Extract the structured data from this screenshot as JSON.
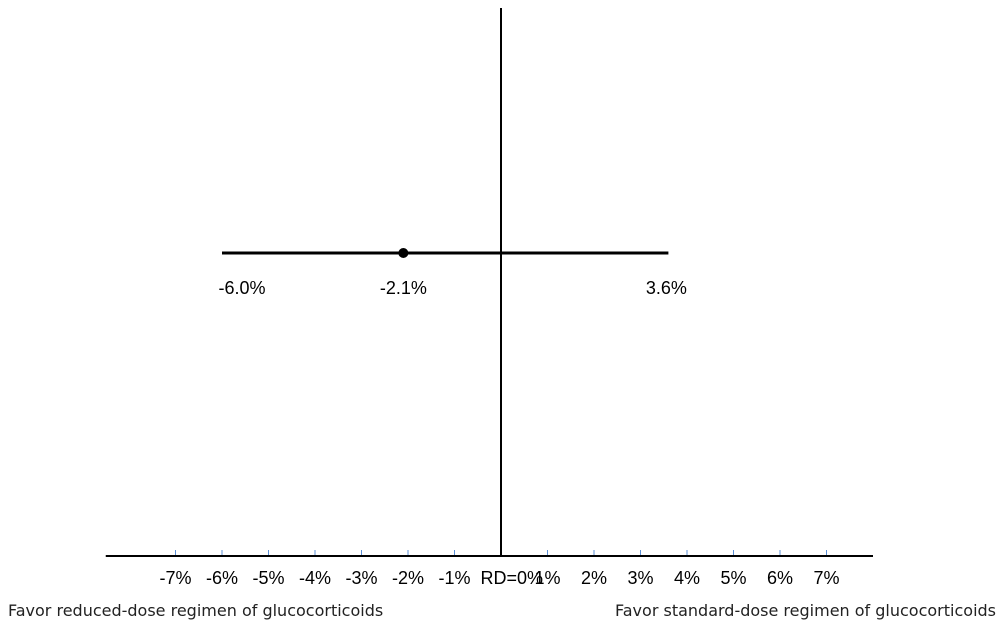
{
  "chart_data": {
    "type": "forest",
    "title": "",
    "xlabel": "",
    "ylabel": "",
    "x_ticks": [
      {
        "value": -7,
        "label": "-7%"
      },
      {
        "value": -6,
        "label": "-6%"
      },
      {
        "value": -5,
        "label": "-5%"
      },
      {
        "value": -4,
        "label": "-4%"
      },
      {
        "value": -3,
        "label": "-3%"
      },
      {
        "value": -2,
        "label": "-2%"
      },
      {
        "value": -1,
        "label": "-1%"
      },
      {
        "value": 0,
        "label": "RD=0%"
      },
      {
        "value": 1,
        "label": "1%"
      },
      {
        "value": 2,
        "label": "2%"
      },
      {
        "value": 3,
        "label": "3%"
      },
      {
        "value": 4,
        "label": "4%"
      },
      {
        "value": 5,
        "label": "5%"
      },
      {
        "value": 6,
        "label": "6%"
      },
      {
        "value": 7,
        "label": "7%"
      }
    ],
    "xlim": [
      -8.5,
      8
    ],
    "estimate": {
      "point": -2.1,
      "lower": -6.0,
      "upper": 3.6,
      "point_label": "-2.1%",
      "lower_label": "-6.0%",
      "upper_label": "3.6%"
    },
    "reference_line": 0,
    "annotations": {
      "left": "Favor reduced-dose regimen of glucocorticoids",
      "right": "Favor standard-dose regimen of glucocorticoids"
    },
    "colors": {
      "line": "#000000",
      "tick": "#5b8fd6"
    }
  }
}
